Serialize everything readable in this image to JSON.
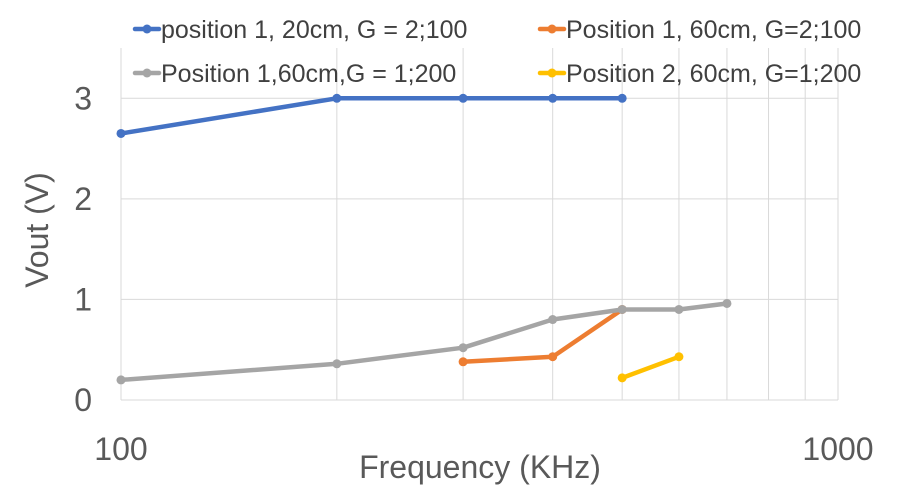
{
  "chart_data": {
    "type": "line",
    "xscale": "log",
    "xlim": [
      100,
      1000
    ],
    "ylim": [
      0,
      3.5
    ],
    "xlabel": "Frequency (KHz)",
    "ylabel": "Vout (V)",
    "x_tick_labels": [
      "100",
      "1000"
    ],
    "y_tick_labels": [
      "0",
      "1",
      "2",
      "3"
    ],
    "grid": {
      "vertical_log_minor": true,
      "horizontal": true
    },
    "legend_position": "top",
    "series": [
      {
        "name": "position 1, 20cm, G = 2;100",
        "color": "#4472C4",
        "x": [
          100,
          200,
          300,
          400,
          500
        ],
        "y": [
          2.65,
          3.0,
          3.0,
          3.0,
          3.0
        ]
      },
      {
        "name": "Position 1, 60cm, G=2;100",
        "color": "#ED7D31",
        "x": [
          300,
          400,
          500
        ],
        "y": [
          0.38,
          0.43,
          0.9
        ]
      },
      {
        "name": "Position 1,60cm,G = 1;200",
        "color": "#A5A5A5",
        "x": [
          100,
          200,
          300,
          400,
          500,
          600,
          700
        ],
        "y": [
          0.2,
          0.36,
          0.52,
          0.8,
          0.9,
          0.9,
          0.96
        ]
      },
      {
        "name": "Position 2, 60cm, G=1;200",
        "color": "#FFC000",
        "x": [
          500,
          600
        ],
        "y": [
          0.22,
          0.43
        ]
      }
    ]
  }
}
